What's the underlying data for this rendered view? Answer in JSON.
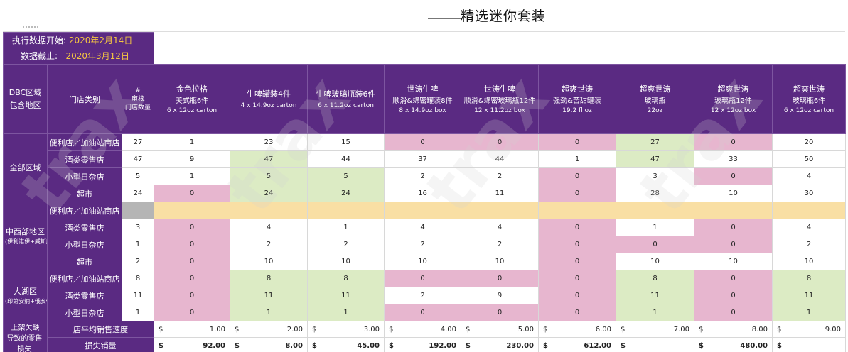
{
  "title": "精选迷你套装",
  "watermark": "trax",
  "meta": {
    "start_label": "执行数据开始:",
    "start_value": "2020年2月14日",
    "end_label": "数据截止:",
    "end_value": "2020年3月12日"
  },
  "header": {
    "region_col": [
      "DBC区域",
      "包含地区"
    ],
    "store_col": "门店类别",
    "count_col": [
      "#",
      "审核",
      "门店数量"
    ],
    "products": [
      {
        "l1": "金色拉格",
        "l2": "美式瓶6件",
        "l3": "6 x 12oz carton"
      },
      {
        "l1": "生啤罐装4件",
        "l2": "",
        "l3": "4 x 14.9oz carton"
      },
      {
        "l1": "生啤玻璃瓶装6件",
        "l2": "",
        "l3": "6 x 11.2oz carton"
      },
      {
        "l1": "世涛生啤",
        "l2": "顺滑&绵密罐装8件",
        "l3": "8 x 14.9oz box"
      },
      {
        "l1": "世涛生啤",
        "l2": "顺滑&绵密玻璃瓶12件",
        "l3": "12 x 11.2oz box"
      },
      {
        "l1": "超爽世涛",
        "l2": "强劲&苦甜罐装",
        "l3": "19.2 fl oz"
      },
      {
        "l1": "超爽世涛",
        "l2": "玻璃瓶",
        "l3": "22oz"
      },
      {
        "l1": "超爽世涛",
        "l2": "玻璃瓶12件",
        "l3": "12 x 12oz box"
      },
      {
        "l1": "超爽世涛",
        "l2": "玻璃瓶6件",
        "l3": "6 x 12oz carton"
      }
    ]
  },
  "regions": [
    {
      "name": "全部区域",
      "sub": "",
      "rows": [
        {
          "store": "便利店／加油站商店",
          "count": "27",
          "values": [
            "1",
            "23",
            "15",
            "0",
            "0",
            "0",
            "27",
            "0",
            "20"
          ],
          "colors": [
            "w",
            "w",
            "w",
            "p",
            "p",
            "p",
            "g",
            "p",
            "w"
          ]
        },
        {
          "store": "酒类零售店",
          "count": "47",
          "values": [
            "9",
            "47",
            "44",
            "37",
            "44",
            "1",
            "47",
            "33",
            "50"
          ],
          "colors": [
            "w",
            "g",
            "w",
            "w",
            "w",
            "w",
            "g",
            "w",
            "w"
          ]
        },
        {
          "store": "小型日杂店",
          "count": "5",
          "values": [
            "1",
            "5",
            "5",
            "2",
            "2",
            "0",
            "3",
            "0",
            "4"
          ],
          "colors": [
            "w",
            "g",
            "g",
            "w",
            "w",
            "p",
            "w",
            "p",
            "w"
          ]
        },
        {
          "store": "超市",
          "count": "24",
          "values": [
            "0",
            "24",
            "24",
            "16",
            "11",
            "0",
            "28",
            "10",
            "30"
          ],
          "colors": [
            "p",
            "g",
            "g",
            "w",
            "w",
            "p",
            "w",
            "w",
            "w"
          ]
        }
      ]
    },
    {
      "name": "中西部地区",
      "sub": "(伊利诺伊+威斯康星)",
      "rows": [
        {
          "store": "便利店／加油站商店",
          "count": "",
          "values": [
            "",
            "",
            "",
            "",
            "",
            "",
            "",
            "",
            ""
          ],
          "colors": [
            "o",
            "o",
            "o",
            "o",
            "o",
            "o",
            "o",
            "o",
            "o"
          ]
        },
        {
          "store": "酒类零售店",
          "count": "3",
          "values": [
            "0",
            "4",
            "1",
            "4",
            "4",
            "0",
            "1",
            "0",
            "4"
          ],
          "colors": [
            "p",
            "w",
            "w",
            "w",
            "w",
            "p",
            "w",
            "p",
            "w"
          ]
        },
        {
          "store": "小型日杂店",
          "count": "1",
          "values": [
            "0",
            "2",
            "2",
            "2",
            "2",
            "0",
            "0",
            "0",
            "2"
          ],
          "colors": [
            "p",
            "w",
            "w",
            "w",
            "w",
            "p",
            "p",
            "p",
            "w"
          ]
        },
        {
          "store": "超市",
          "count": "2",
          "values": [
            "0",
            "10",
            "10",
            "10",
            "10",
            "0",
            "10",
            "10",
            "10"
          ],
          "colors": [
            "p",
            "w",
            "w",
            "w",
            "w",
            "p",
            "w",
            "w",
            "w"
          ]
        }
      ]
    },
    {
      "name": "大湖区",
      "sub": "(印第安纳+俄亥俄)",
      "rows": [
        {
          "store": "便利店／加油站商店",
          "count": "8",
          "values": [
            "0",
            "8",
            "8",
            "0",
            "0",
            "0",
            "8",
            "0",
            "8"
          ],
          "colors": [
            "p",
            "g",
            "g",
            "p",
            "p",
            "p",
            "g",
            "p",
            "g"
          ]
        },
        {
          "store": "酒类零售店",
          "count": "11",
          "values": [
            "0",
            "11",
            "11",
            "2",
            "9",
            "0",
            "11",
            "0",
            "11"
          ],
          "colors": [
            "p",
            "g",
            "g",
            "w",
            "w",
            "p",
            "g",
            "p",
            "g"
          ]
        },
        {
          "store": "小型日杂店",
          "count": "1",
          "values": [
            "0",
            "1",
            "1",
            "0",
            "0",
            "0",
            "1",
            "0",
            "1"
          ],
          "colors": [
            "p",
            "g",
            "g",
            "p",
            "p",
            "p",
            "g",
            "p",
            "g"
          ]
        }
      ]
    }
  ],
  "footer": {
    "label": [
      "上架欠缺",
      "导致的零售损失"
    ],
    "rows": [
      {
        "label": "店平均销售速度",
        "currency": "$",
        "values": [
          "1.00",
          "2.00",
          "3.00",
          "4.00",
          "5.00",
          "6.00",
          "7.00",
          "8.00",
          "9.00"
        ],
        "bold": false
      },
      {
        "label": "损失销量",
        "currency": "$",
        "values": [
          "92.00",
          "8.00",
          "45.00",
          "192.00",
          "230.00",
          "612.00",
          "",
          "480.00",
          ""
        ],
        "bold": true
      }
    ]
  },
  "colors": {
    "purple": "#5a2a82",
    "pink": "#e7b6cf",
    "green": "#dcebc4",
    "orange": "#f9dfa4",
    "gray": "#b5b5b5"
  }
}
